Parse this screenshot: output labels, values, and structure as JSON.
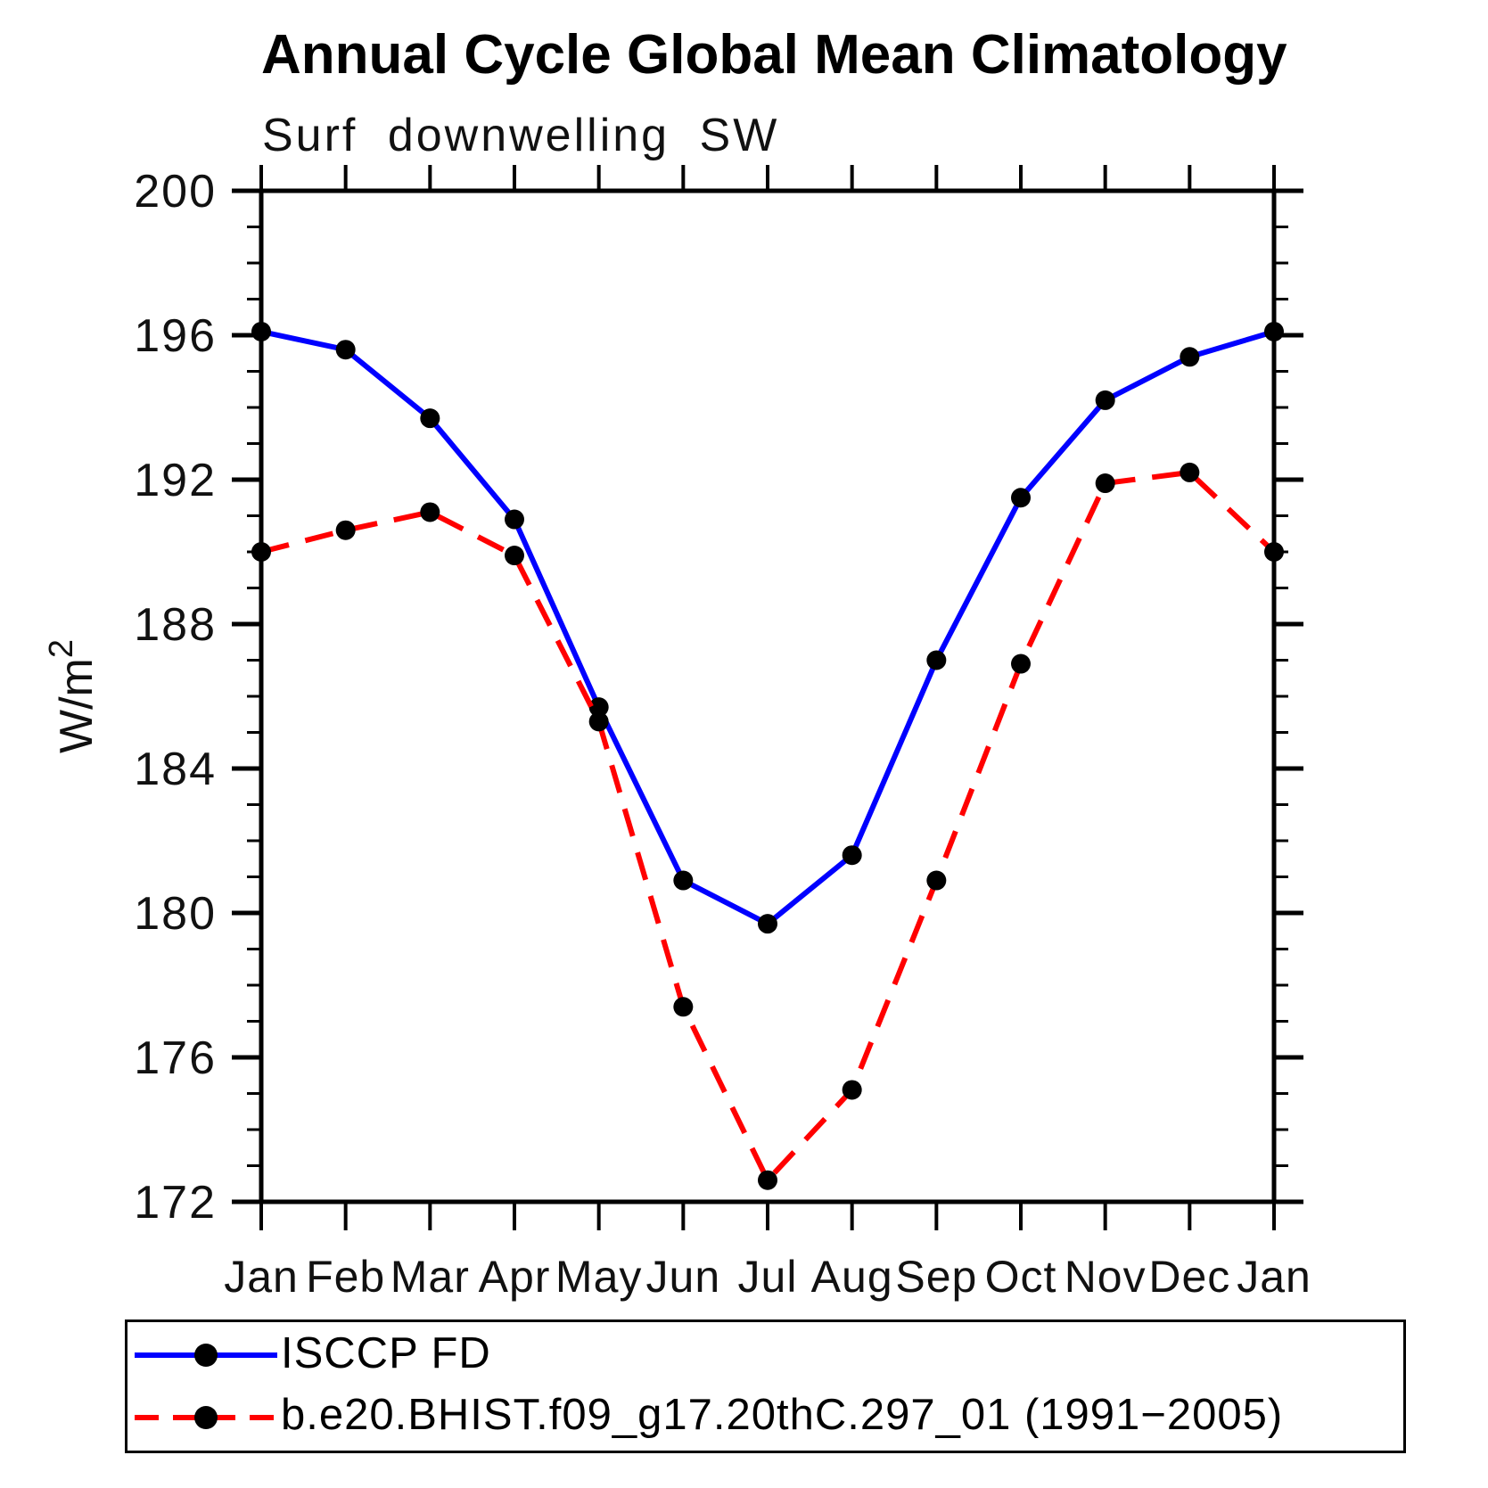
{
  "window": {
    "background": "#ffffff"
  },
  "title": "Annual Cycle Global Mean Climatology",
  "subtitle": "Surf downwelling SW",
  "y_axis": {
    "unit_base": "W/m",
    "unit_exponent": "2"
  },
  "colors": {
    "axis": "#000000",
    "marker": "#000000",
    "series_obs": "#0000ff",
    "series_model": "#ff0000"
  },
  "legend": {
    "items": [
      {
        "label": "ISCCP FD",
        "color": "#0000ff",
        "line_style": "solid",
        "marker": "filled-circle"
      },
      {
        "label": "b.e20.BHIST.f09_g17.20thC.297_01 (1991−2005)",
        "color": "#ff0000",
        "line_style": "dashed",
        "marker": "filled-circle"
      }
    ]
  },
  "chart_data": {
    "type": "line",
    "title": "Annual Cycle Global Mean Climatology",
    "subtitle": "Surf downwelling SW",
    "xlabel": "",
    "ylabel": "W/m^2",
    "categories": [
      "Jan",
      "Feb",
      "Mar",
      "Apr",
      "May",
      "Jun",
      "Jul",
      "Aug",
      "Sep",
      "Oct",
      "Nov",
      "Dec",
      "Jan"
    ],
    "series": [
      {
        "name": "ISCCP FD",
        "color": "#0000ff",
        "style": "solid",
        "marker": "filled-circle",
        "marker_color": "#000000",
        "values": [
          196.1,
          195.6,
          193.7,
          190.9,
          185.7,
          180.9,
          179.7,
          181.6,
          187.0,
          191.5,
          194.2,
          195.4,
          196.1
        ]
      },
      {
        "name": "b.e20.BHIST.f09_g17.20thC.297_01 (1991−2005)",
        "color": "#ff0000",
        "style": "dashed",
        "marker": "filled-circle",
        "marker_color": "#000000",
        "values": [
          190.0,
          190.6,
          191.1,
          189.9,
          185.3,
          177.4,
          172.6,
          175.1,
          180.9,
          186.9,
          191.9,
          192.2,
          190.0
        ]
      }
    ],
    "ylim": [
      172,
      200
    ],
    "ytick_major_step": 4,
    "ytick_minor_step": 1,
    "ytick_labels": [
      "172",
      "176",
      "180",
      "184",
      "188",
      "192",
      "196",
      "200"
    ],
    "grid": false,
    "legend_position": "bottom-left-box"
  }
}
